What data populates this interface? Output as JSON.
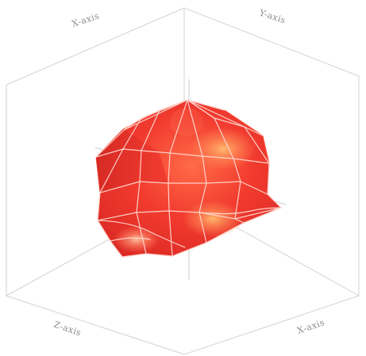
{
  "axes": {
    "top_left_label": "X-axis",
    "top_right_label": "Y-axis",
    "bottom_left_label": "Z-axis",
    "bottom_right_label": "X-axis"
  },
  "colors": {
    "surface_main": "#f23b2f",
    "surface_light": "#ff7b55",
    "surface_highlight": "#ffb067",
    "surface_shadow": "#d92a24",
    "wire": "#ffd8d0",
    "box_lines": "#d2d2d2",
    "labels": "#8b8b8b"
  }
}
